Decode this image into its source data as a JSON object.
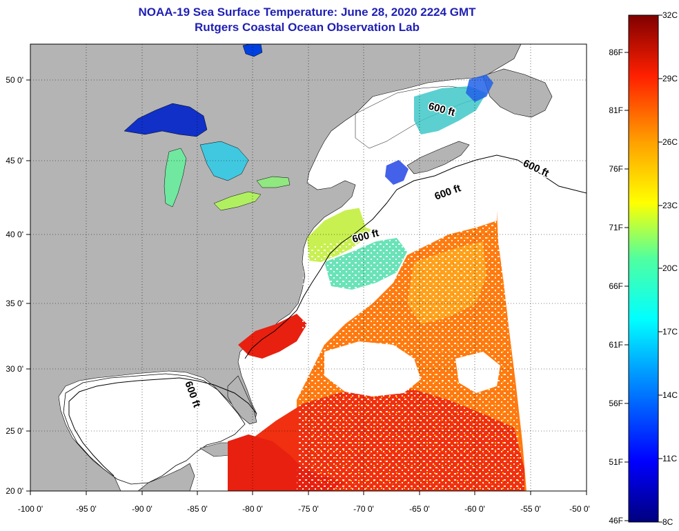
{
  "header": {
    "title": "NOAA-19 Sea Surface Temperature:  June 28, 2020 2224 GMT",
    "subtitle": "Rutgers Coastal Ocean Observation Lab"
  },
  "map": {
    "lon_ticks": [
      "-100 0'",
      "-95 0'",
      "-90 0'",
      "-85 0'",
      "-80 0'",
      "-75 0'",
      "-70 0'",
      "-65 0'",
      "-60 0'",
      "-55 0'",
      "-50 0'"
    ],
    "lat_ticks": [
      "50 0'",
      "45 0'",
      "40 0'",
      "35 0'",
      "30 0'",
      "25 0'",
      "20 0'"
    ],
    "contour_label": "600 ft",
    "land_color": "#b4b4b4",
    "cloud_color": "#ffffff"
  },
  "colorbar": {
    "celsius_labels": [
      "32C",
      "29C",
      "26C",
      "23C",
      "20C",
      "17C",
      "14C",
      "11C",
      "8C"
    ],
    "fahrenheit_labels": [
      "86F",
      "81F",
      "76F",
      "71F",
      "66F",
      "61F",
      "56F",
      "51F",
      "46F"
    ]
  }
}
